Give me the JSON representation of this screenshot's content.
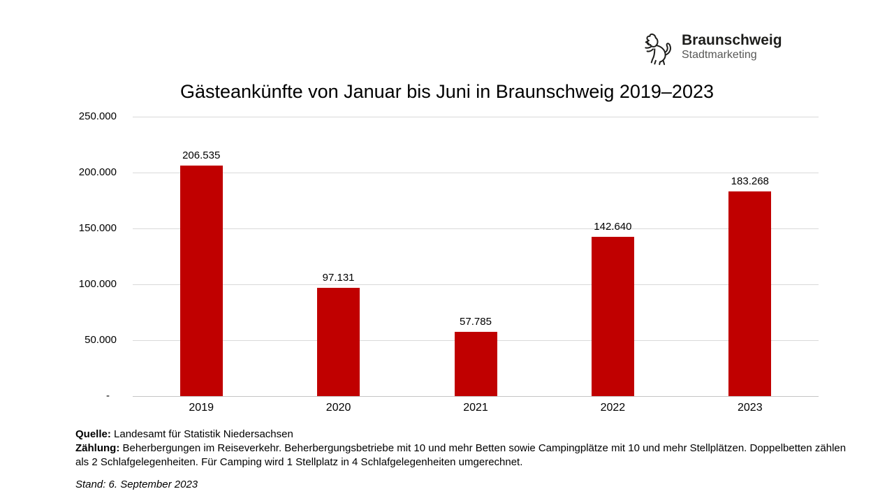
{
  "logo": {
    "brand": "Braunschweig",
    "subbrand": "Stadtmarketing"
  },
  "chart_data": {
    "type": "bar",
    "title": "Gästeankünfte von Januar bis Juni in Braunschweig 2019–2023",
    "categories": [
      "2019",
      "2020",
      "2021",
      "2022",
      "2023"
    ],
    "values": [
      206535,
      97131,
      57785,
      142640,
      183268
    ],
    "value_labels": [
      "206.535",
      "97.131",
      "57.785",
      "142.640",
      "183.268"
    ],
    "xlabel": "",
    "ylabel": "",
    "ylim": [
      0,
      250000
    ],
    "ytick_values": [
      250000,
      200000,
      150000,
      100000,
      50000,
      0
    ],
    "ytick_labels": [
      "250.000",
      "200.000",
      "150.000",
      "100.000",
      "50.000",
      "-"
    ],
    "bar_color": "#C00000",
    "gridline_color": "#D9D9D9",
    "grid": true,
    "legend_position": "none"
  },
  "footer": {
    "source_label": "Quelle:",
    "source_text": " Landesamt für Statistik Niedersachsen",
    "method_label": "Zählung:",
    "method_text": " Beherbergungen im Reiseverkehr. Beherbergungsbetriebe mit 10 und mehr Betten sowie Campingplätze mit 10 und mehr Stellplätzen. Doppelbetten zählen als 2 Schlafgelegenheiten. Für Camping wird 1 Stellplatz in 4 Schlafgelegenheiten umgerechnet.",
    "date_note": "Stand: 6. September 2023"
  }
}
